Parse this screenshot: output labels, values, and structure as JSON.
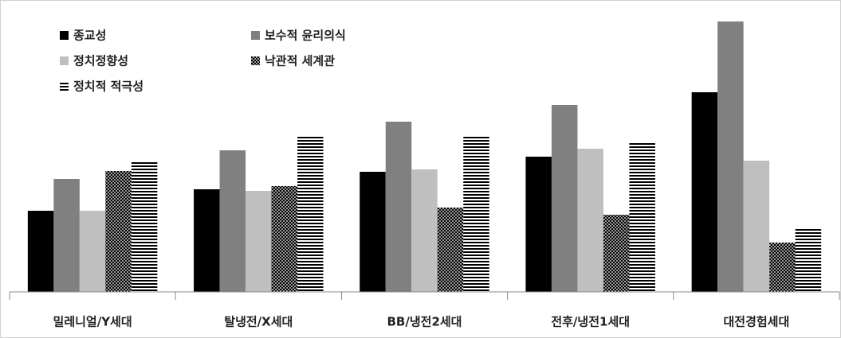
{
  "chart_data": {
    "type": "bar",
    "categories": [
      "밀레니얼/Y세대",
      "탈냉전/X세대",
      "BB/냉전2세대",
      "전후/냉전1세대",
      "대전경험세대"
    ],
    "series": [
      {
        "name": "종교성",
        "color": "#000000",
        "fill": "solid",
        "values": [
          102,
          129,
          151,
          170,
          251
        ]
      },
      {
        "name": "보수적 윤리의식",
        "color": "#808080",
        "fill": "solid",
        "values": [
          142,
          178,
          214,
          235,
          340
        ]
      },
      {
        "name": "정치정향성",
        "color": "#bfbfbf",
        "fill": "solid",
        "values": [
          102,
          127,
          154,
          180,
          165
        ]
      },
      {
        "name": "낙관적 세계관",
        "color": "#000000",
        "fill": "crosshatch",
        "values": [
          152,
          133,
          106,
          97,
          62
        ]
      },
      {
        "name": "정치적 적극성",
        "color": "#000000",
        "fill": "hstripe",
        "values": [
          164,
          196,
          196,
          189,
          81
        ]
      }
    ],
    "ylim": [
      0,
      347
    ],
    "legend": "top-left"
  }
}
